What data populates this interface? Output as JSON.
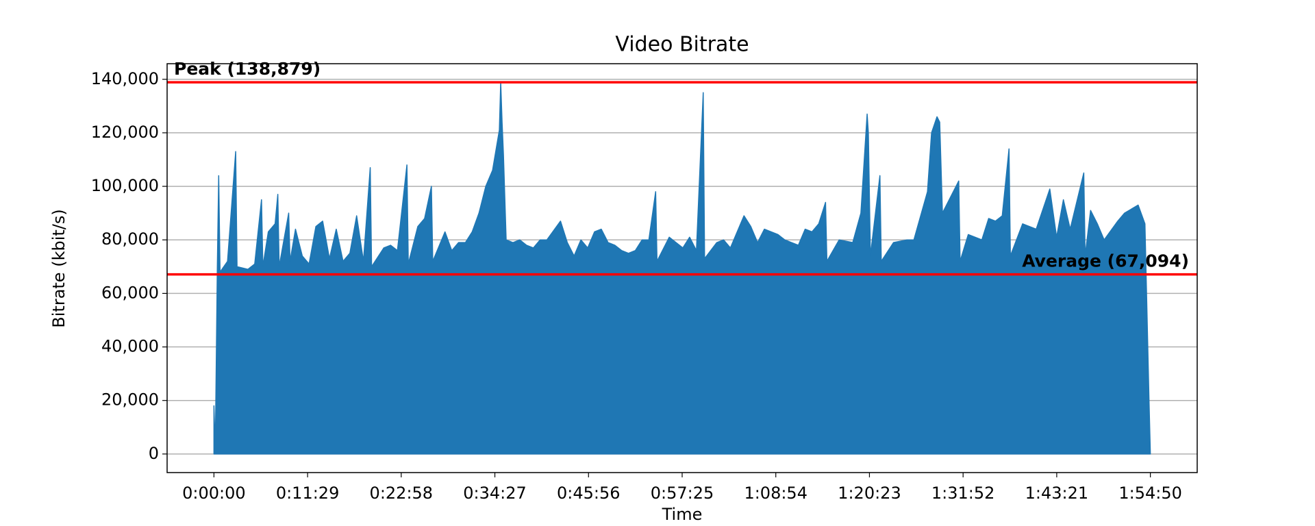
{
  "chart_data": {
    "type": "area",
    "title": "Video Bitrate",
    "x_label": "Time",
    "y_label": "Bitrate (kbit/s)",
    "color": "#1f77b4",
    "line_color": "#ff0000",
    "grid": true,
    "xlim": [
      -344.5,
      7234.5
    ],
    "ylim": [
      -6944,
      145823
    ],
    "xticks": [
      {
        "value": 0,
        "label": "0:00:00"
      },
      {
        "value": 689,
        "label": "0:11:29"
      },
      {
        "value": 1378,
        "label": "0:22:58"
      },
      {
        "value": 2067,
        "label": "0:34:27"
      },
      {
        "value": 2756,
        "label": "0:45:56"
      },
      {
        "value": 3445,
        "label": "0:57:25"
      },
      {
        "value": 4134,
        "label": "1:08:54"
      },
      {
        "value": 4823,
        "label": "1:20:23"
      },
      {
        "value": 5512,
        "label": "1:31:52"
      },
      {
        "value": 6201,
        "label": "1:43:21"
      },
      {
        "value": 6890,
        "label": "1:54:50"
      }
    ],
    "yticks": [
      0,
      {
        "value": 20000,
        "label": "20,000"
      },
      {
        "value": 40000,
        "label": "40,000"
      },
      {
        "value": 60000,
        "label": "60,000"
      },
      {
        "value": 80000,
        "label": "80,000"
      },
      {
        "value": 100000,
        "label": "100,000"
      },
      {
        "value": 120000,
        "label": "120,000"
      },
      {
        "value": 140000,
        "label": "140,000"
      }
    ],
    "annotations": [
      {
        "label": "Peak (138,879)",
        "value": 138879
      },
      {
        "label": "Average (67,094)",
        "value": 67094
      }
    ],
    "x": [
      0,
      10,
      25,
      35,
      45,
      100,
      160,
      170,
      250,
      300,
      350,
      360,
      400,
      450,
      470,
      480,
      550,
      560,
      600,
      650,
      700,
      750,
      800,
      850,
      900,
      950,
      1000,
      1050,
      1100,
      1150,
      1160,
      1250,
      1300,
      1350,
      1420,
      1430,
      1500,
      1550,
      1600,
      1610,
      1700,
      1750,
      1800,
      1850,
      1900,
      1950,
      2000,
      2050,
      2100,
      2110,
      2120,
      2130,
      2150,
      2200,
      2250,
      2300,
      2350,
      2400,
      2450,
      2550,
      2600,
      2650,
      2700,
      2750,
      2800,
      2850,
      2900,
      2950,
      3000,
      3050,
      3100,
      3150,
      3200,
      3250,
      3260,
      3350,
      3450,
      3500,
      3550,
      3600,
      3610,
      3700,
      3750,
      3800,
      3900,
      3950,
      4000,
      4050,
      4150,
      4200,
      4250,
      4300,
      4350,
      4400,
      4450,
      4500,
      4510,
      4600,
      4700,
      4760,
      4806,
      4815,
      4830,
      4900,
      4910,
      5000,
      5100,
      5150,
      5250,
      5280,
      5300,
      5320,
      5340,
      5360,
      5450,
      5480,
      5490,
      5550,
      5650,
      5700,
      5750,
      5800,
      5850,
      5860,
      5950,
      6050,
      6150,
      6200,
      6250,
      6300,
      6400,
      6410,
      6450,
      6500,
      6550,
      6650,
      6700,
      6800,
      6850,
      6880,
      6890
    ],
    "values": [
      18000,
      2000,
      70000,
      104000,
      68000,
      72000,
      113000,
      70000,
      69000,
      71000,
      95000,
      70000,
      83000,
      86000,
      97000,
      70000,
      90000,
      72000,
      84000,
      74000,
      71000,
      85000,
      87000,
      73000,
      84000,
      72000,
      75000,
      89000,
      72000,
      107000,
      70000,
      77000,
      78000,
      76000,
      108000,
      71000,
      85000,
      88000,
      100000,
      72000,
      83000,
      76000,
      79000,
      79000,
      83000,
      90000,
      100000,
      106000,
      121000,
      138879,
      124000,
      112000,
      80000,
      79000,
      80000,
      78000,
      77000,
      80000,
      80000,
      87000,
      79000,
      74000,
      80000,
      77000,
      83000,
      84000,
      79000,
      78000,
      76000,
      75000,
      76000,
      80000,
      80000,
      98000,
      72000,
      81000,
      77000,
      81000,
      76000,
      135000,
      73000,
      79000,
      80000,
      77000,
      89000,
      85000,
      79000,
      84000,
      82000,
      80000,
      79000,
      78000,
      84000,
      83000,
      86000,
      94000,
      72000,
      80000,
      79000,
      90000,
      127000,
      120000,
      74000,
      104000,
      72000,
      79000,
      80000,
      80000,
      98000,
      120000,
      123000,
      126000,
      124000,
      90000,
      99000,
      102000,
      72000,
      82000,
      80000,
      88000,
      87000,
      89000,
      114000,
      74000,
      86000,
      84000,
      99000,
      81000,
      95000,
      84000,
      105000,
      74000,
      91000,
      86000,
      80000,
      87000,
      90000,
      93000,
      86000,
      20000,
      0
    ]
  }
}
